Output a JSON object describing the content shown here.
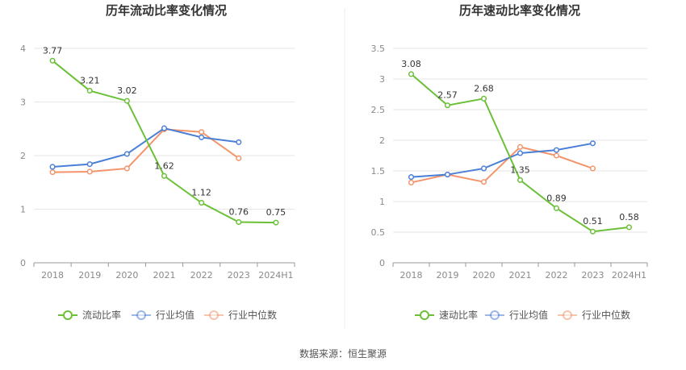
{
  "source_text": "数据来源：恒生聚源",
  "colors": {
    "primary": "#6bc038",
    "avg": "#4a7fd6",
    "median": "#f4946b",
    "grid": "#e6e6e6",
    "axis": "#999999"
  },
  "chart_data": [
    {
      "type": "line",
      "title": "历年流动比率变化情况",
      "categories": [
        "2018",
        "2019",
        "2020",
        "2021",
        "2022",
        "2023",
        "2024H1"
      ],
      "ylim": [
        0,
        4
      ],
      "yticks": [
        0,
        1,
        2,
        3,
        4
      ],
      "ytick_labels": [
        "0",
        "1",
        "2",
        "3",
        "4"
      ],
      "series": [
        {
          "name": "流动比率",
          "key": "primary",
          "values": [
            3.77,
            3.21,
            3.02,
            1.62,
            1.12,
            0.76,
            0.75
          ],
          "labels": [
            "3.77",
            "3.21",
            "3.02",
            "1.62",
            "1.12",
            "0.76",
            "0.75"
          ]
        },
        {
          "name": "行业均值",
          "key": "avg",
          "values": [
            1.79,
            1.84,
            2.03,
            2.51,
            2.34,
            2.25,
            null
          ]
        },
        {
          "name": "行业中位数",
          "key": "median",
          "values": [
            1.69,
            1.7,
            1.76,
            2.49,
            2.44,
            1.95,
            null
          ]
        }
      ],
      "legend_position": "bottom"
    },
    {
      "type": "line",
      "title": "历年速动比率变化情况",
      "categories": [
        "2018",
        "2019",
        "2020",
        "2021",
        "2022",
        "2023",
        "2024H1"
      ],
      "ylim": [
        0,
        3.5
      ],
      "yticks": [
        0,
        0.5,
        1,
        1.5,
        2,
        2.5,
        3,
        3.5
      ],
      "ytick_labels": [
        "0",
        "0.5",
        "1",
        "1.5",
        "2",
        "2.5",
        "3",
        "3.5"
      ],
      "series": [
        {
          "name": "速动比率",
          "key": "primary",
          "values": [
            3.08,
            2.57,
            2.68,
            1.35,
            0.89,
            0.51,
            0.58
          ],
          "labels": [
            "3.08",
            "2.57",
            "2.68",
            "1.35",
            "0.89",
            "0.51",
            "0.58"
          ]
        },
        {
          "name": "行业均值",
          "key": "avg",
          "values": [
            1.4,
            1.44,
            1.54,
            1.79,
            1.84,
            1.95,
            null
          ]
        },
        {
          "name": "行业中位数",
          "key": "median",
          "values": [
            1.31,
            1.44,
            1.32,
            1.89,
            1.75,
            1.54,
            null
          ]
        }
      ],
      "legend_position": "bottom"
    }
  ]
}
